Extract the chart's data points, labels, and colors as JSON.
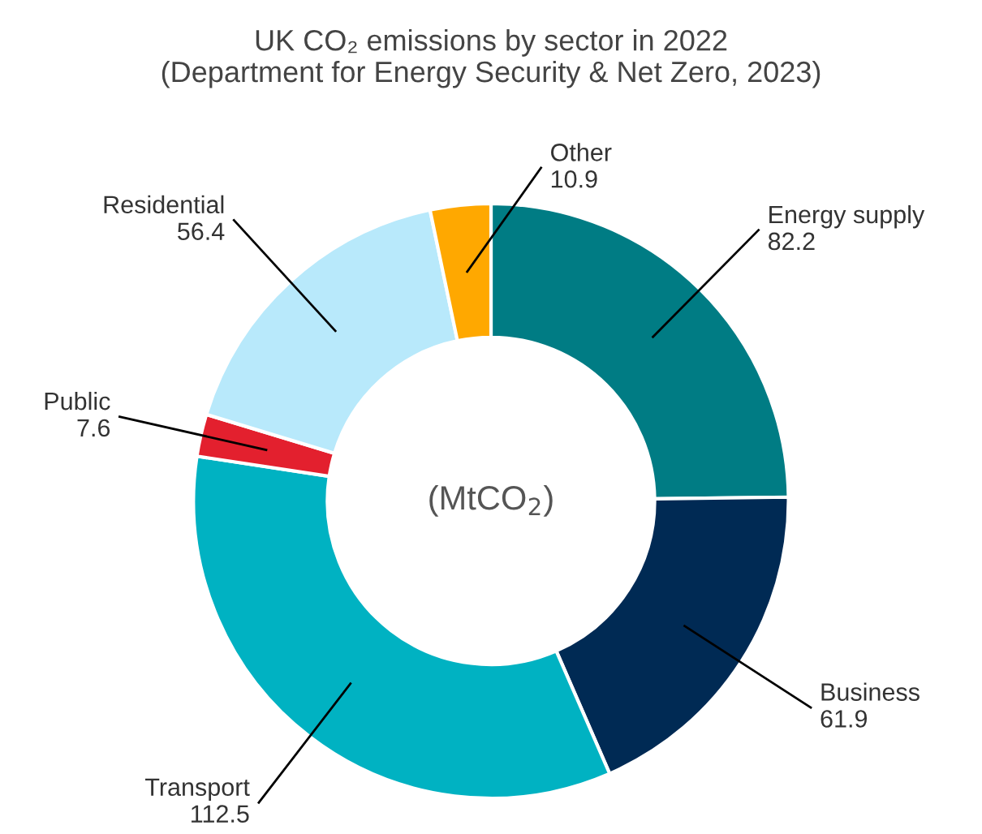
{
  "chart_data": {
    "type": "donut",
    "title": "UK CO₂ emissions by sector in 2022",
    "subtitle": "(Department for Energy Security & Net Zero, 2023)",
    "categories": [
      "Energy supply",
      "Business",
      "Transport",
      "Public",
      "Residential",
      "Other"
    ],
    "values": [
      82.2,
      61.9,
      112.5,
      7.6,
      56.4,
      10.9
    ],
    "colors": [
      "#007c84",
      "#002a54",
      "#00b2c2",
      "#e3202e",
      "#b8e9fb",
      "#ffa800"
    ],
    "data_labels": true,
    "legend": false,
    "annotations": [
      "(MtCO$_{2}$)"
    ]
  }
}
